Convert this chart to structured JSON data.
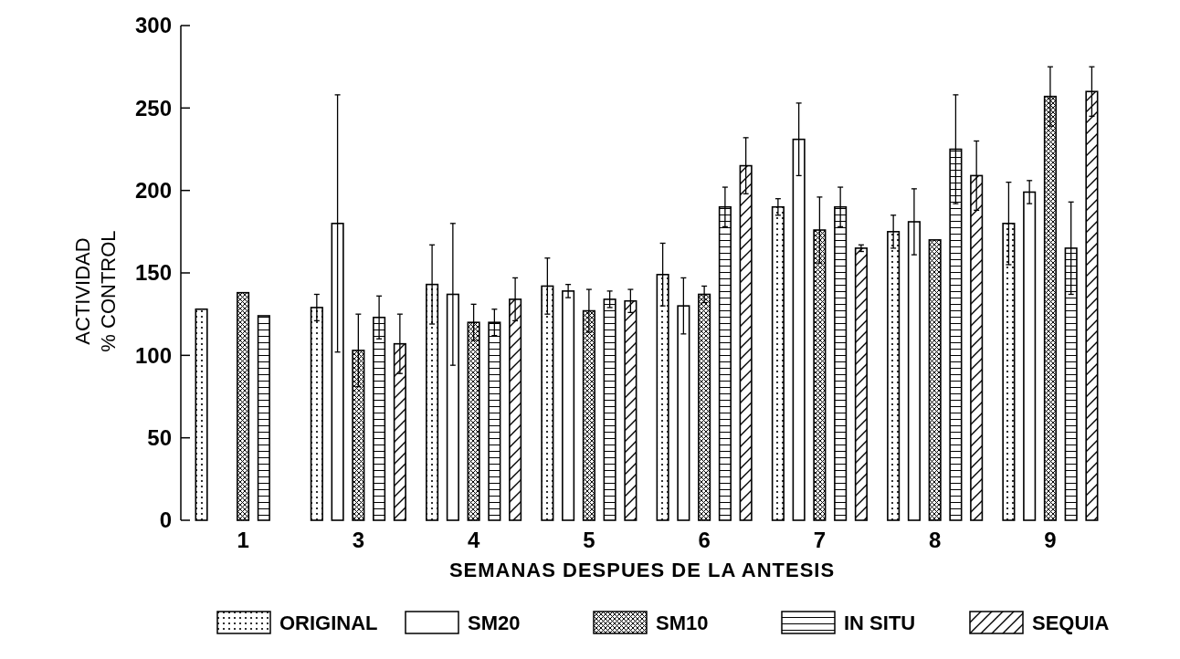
{
  "chart_data": {
    "type": "bar",
    "xlabel": "SEMANAS DESPUES DE LA ANTESIS",
    "ylabel": "ACTIVIDAD\n% CONTROL",
    "categories": [
      "1",
      "3",
      "4",
      "5",
      "6",
      "7",
      "8",
      "9"
    ],
    "series": [
      {
        "name": "ORIGINAL",
        "color": "#000000",
        "values": [
          128,
          129,
          143,
          142,
          149,
          190,
          175,
          180
        ],
        "errors": [
          null,
          8,
          24,
          17,
          19,
          5,
          10,
          25
        ]
      },
      {
        "name": "SM20",
        "color": "#000000",
        "values": [
          null,
          180,
          137,
          139,
          130,
          231,
          181,
          199
        ],
        "errors": [
          null,
          78,
          43,
          4,
          17,
          22,
          20,
          7
        ]
      },
      {
        "name": "SM10",
        "color": "#000000",
        "values": [
          138,
          103,
          120,
          127,
          137,
          176,
          170,
          257
        ],
        "errors": [
          null,
          22,
          11,
          13,
          5,
          20,
          null,
          18
        ]
      },
      {
        "name": "IN SITU",
        "color": "#000000",
        "values": [
          124,
          123,
          120,
          134,
          190,
          190,
          225,
          165
        ],
        "errors": [
          null,
          13,
          8,
          5,
          12,
          12,
          33,
          28
        ]
      },
      {
        "name": "SEQUIA",
        "color": "#000000",
        "values": [
          null,
          107,
          134,
          133,
          215,
          165,
          209,
          260
        ],
        "errors": [
          null,
          18,
          13,
          7,
          17,
          2,
          21,
          15
        ]
      }
    ],
    "ylim": [
      0,
      300
    ],
    "yticks": [
      0,
      50,
      100,
      150,
      200,
      250,
      300
    ],
    "grid": false,
    "legend": "bottom"
  }
}
